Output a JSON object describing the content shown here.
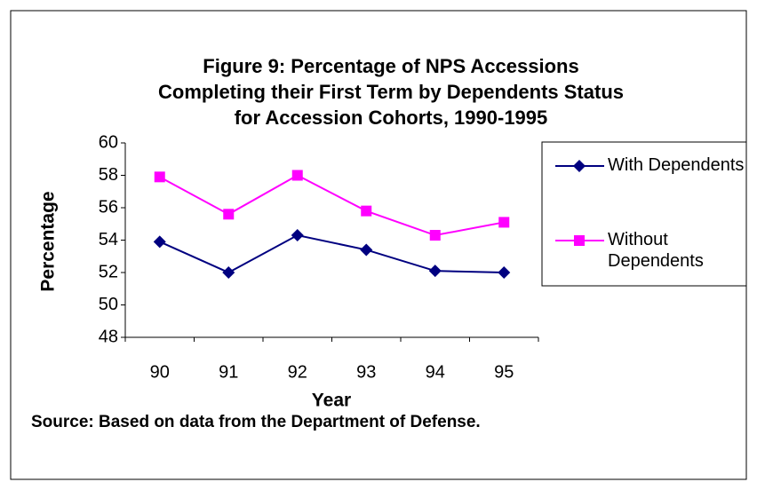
{
  "chart_data": {
    "type": "line",
    "title": "Figure 9: Percentage of NPS Accessions Completing their First Term by Dependents Status for Accession Cohorts, 1990-1995",
    "x_label": "Year",
    "y_label": "Percentage",
    "source": "Source: Based on data from the Department of Defense.",
    "categories": [
      "90",
      "91",
      "92",
      "93",
      "94",
      "95"
    ],
    "series": [
      {
        "name": "With Dependents",
        "color": "#000080",
        "marker": "diamond",
        "values": [
          53.9,
          52.0,
          54.3,
          53.4,
          52.1,
          52.0
        ]
      },
      {
        "name": "Without Dependents",
        "color": "#ff00ff",
        "marker": "square",
        "values": [
          57.9,
          55.6,
          58.0,
          55.8,
          54.3,
          55.1
        ]
      }
    ],
    "ylim": [
      48,
      60
    ],
    "yticks": [
      48,
      50,
      52,
      54,
      56,
      58,
      60
    ],
    "grid": false,
    "legend": "right"
  }
}
